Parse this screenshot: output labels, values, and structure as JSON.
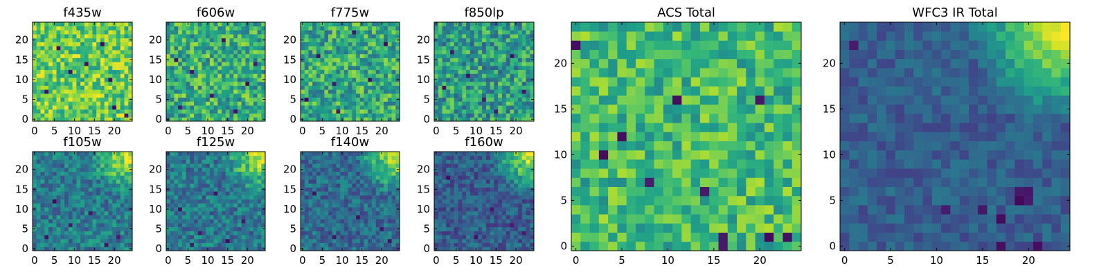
{
  "figure": {
    "description": "Grid of 25x25 heatmap image panels: eight per-filter cutouts plus ACS and WFC3 IR totals"
  },
  "colormap": {
    "name": "viridis",
    "stops": [
      "#440154",
      "#482878",
      "#3e4989",
      "#31688e",
      "#26828e",
      "#1f9e89",
      "#35b779",
      "#6ece58",
      "#b5de2b",
      "#fde725"
    ]
  },
  "chart_data": [
    {
      "type": "heatmap",
      "id": "f435w",
      "title": "f435w",
      "size": 25,
      "xlim": [
        -0.5,
        24.5
      ],
      "ylim": [
        -0.5,
        24.5
      ],
      "xticks": [
        0,
        5,
        10,
        15,
        20
      ],
      "yticks": [
        0,
        5,
        10,
        15,
        20
      ],
      "pattern": {
        "base": 0.76,
        "variation": 0.22,
        "dark_cells": [
          [
            9,
            12
          ],
          [
            17,
            19
          ],
          [
            3,
            7
          ],
          [
            20,
            3
          ],
          [
            23,
            1
          ],
          [
            13,
            14
          ],
          [
            6,
            18
          ],
          [
            19,
            10
          ]
        ]
      }
    },
    {
      "type": "heatmap",
      "id": "f606w",
      "title": "f606w",
      "size": 25,
      "xlim": [
        -0.5,
        24.5
      ],
      "ylim": [
        -0.5,
        24.5
      ],
      "xticks": [
        0,
        5,
        10,
        15,
        20
      ],
      "yticks": [
        0,
        5,
        10,
        15,
        20
      ],
      "pattern": {
        "base": 0.62,
        "variation": 0.25,
        "dark_cells": [
          [
            14,
            20
          ],
          [
            6,
            12
          ],
          [
            20,
            9
          ],
          [
            3,
            3
          ],
          [
            17,
            2
          ],
          [
            11,
            6
          ],
          [
            2,
            15
          ],
          [
            22,
            14
          ]
        ]
      }
    },
    {
      "type": "heatmap",
      "id": "f775w",
      "title": "f775w",
      "size": 25,
      "xlim": [
        -0.5,
        24.5
      ],
      "ylim": [
        -0.5,
        24.5
      ],
      "xticks": [
        0,
        5,
        10,
        15,
        20
      ],
      "yticks": [
        0,
        5,
        10,
        15,
        20
      ],
      "pattern": {
        "base": 0.6,
        "variation": 0.25,
        "dark_cells": [
          [
            4,
            16
          ],
          [
            17,
            10
          ],
          [
            1,
            5
          ],
          [
            21,
            19
          ],
          [
            9,
            2
          ],
          [
            13,
            22
          ],
          [
            8,
            9
          ]
        ]
      }
    },
    {
      "type": "heatmap",
      "id": "f850lp",
      "title": "f850lp",
      "size": 25,
      "xlim": [
        -0.5,
        24.5
      ],
      "ylim": [
        -0.5,
        24.5
      ],
      "xticks": [
        0,
        5,
        10,
        15,
        20
      ],
      "yticks": [
        0,
        5,
        10,
        15,
        20
      ],
      "pattern": {
        "base": 0.55,
        "variation": 0.25,
        "dark_cells": [
          [
            4,
            17
          ],
          [
            12,
            5
          ],
          [
            19,
            16
          ],
          [
            8,
            11
          ],
          [
            22,
            7
          ],
          [
            15,
            2
          ],
          [
            2,
            8
          ]
        ]
      }
    },
    {
      "type": "heatmap",
      "id": "f105w",
      "title": "f105w",
      "size": 25,
      "xlim": [
        -0.5,
        24.5
      ],
      "ylim": [
        -0.5,
        24.5
      ],
      "xticks": [
        0,
        5,
        10,
        15,
        20
      ],
      "yticks": [
        0,
        5,
        10,
        15,
        20
      ],
      "pattern": {
        "base": 0.42,
        "variation": 0.18,
        "dark_cells": [
          [
            3,
            3
          ],
          [
            18,
            1
          ],
          [
            9,
            6
          ],
          [
            21,
            3
          ],
          [
            5,
            12
          ],
          [
            14,
            9
          ]
        ],
        "corner_boost": 0.55
      }
    },
    {
      "type": "heatmap",
      "id": "f125w",
      "title": "f125w",
      "size": 25,
      "xlim": [
        -0.5,
        24.5
      ],
      "ylim": [
        -0.5,
        24.5
      ],
      "xticks": [
        0,
        5,
        10,
        15,
        20
      ],
      "yticks": [
        0,
        5,
        10,
        15,
        20
      ],
      "pattern": {
        "base": 0.4,
        "variation": 0.18,
        "dark_cells": [
          [
            8,
            4
          ],
          [
            15,
            2
          ],
          [
            3,
            10
          ],
          [
            19,
            7
          ],
          [
            12,
            14
          ],
          [
            6,
            1
          ]
        ],
        "corner_boost": 0.6
      }
    },
    {
      "type": "heatmap",
      "id": "f140w",
      "title": "f140w",
      "size": 25,
      "xlim": [
        -0.5,
        24.5
      ],
      "ylim": [
        -0.5,
        24.5
      ],
      "xticks": [
        0,
        5,
        10,
        15,
        20
      ],
      "yticks": [
        0,
        5,
        10,
        15,
        20
      ],
      "pattern": {
        "base": 0.35,
        "variation": 0.16,
        "dark_cells": [
          [
            20,
            5
          ],
          [
            8,
            3
          ],
          [
            14,
            8
          ],
          [
            3,
            14
          ],
          [
            22,
            2
          ]
        ],
        "corner_boost": 0.65
      }
    },
    {
      "type": "heatmap",
      "id": "f160w",
      "title": "f160w",
      "size": 25,
      "xlim": [
        -0.5,
        24.5
      ],
      "ylim": [
        -0.5,
        24.5
      ],
      "xticks": [
        0,
        5,
        10,
        15,
        20
      ],
      "yticks": [
        0,
        5,
        10,
        15,
        20
      ],
      "pattern": {
        "base": 0.3,
        "variation": 0.15,
        "dark_cells": [
          [
            19,
            6
          ],
          [
            10,
            3
          ],
          [
            3,
            18
          ],
          [
            22,
            4
          ],
          [
            14,
            10
          ]
        ],
        "corner_boost": 0.7
      }
    },
    {
      "type": "heatmap",
      "id": "acs-total",
      "title": "ACS Total",
      "size": 25,
      "xlim": [
        -0.5,
        24.5
      ],
      "ylim": [
        -0.5,
        24.5
      ],
      "xticks": [
        0,
        5,
        10,
        15,
        20
      ],
      "yticks": [
        0,
        5,
        10,
        15,
        20
      ],
      "pattern": {
        "base": 0.68,
        "variation": 0.2,
        "dark_cells": [
          [
            0,
            22
          ],
          [
            3,
            10
          ],
          [
            8,
            7
          ],
          [
            14,
            6
          ],
          [
            16,
            1
          ],
          [
            16,
            0
          ],
          [
            20,
            16
          ],
          [
            21,
            1
          ],
          [
            23,
            1
          ],
          [
            11,
            16
          ],
          [
            5,
            12
          ]
        ]
      }
    },
    {
      "type": "heatmap",
      "id": "wfc3-ir-total",
      "title": "WFC3 IR Total",
      "size": 25,
      "xlim": [
        -0.5,
        24.5
      ],
      "ylim": [
        -0.5,
        24.5
      ],
      "xticks": [
        0,
        5,
        10,
        15,
        20
      ],
      "yticks": [
        0,
        5,
        10,
        15,
        20
      ],
      "pattern": {
        "base": 0.3,
        "variation": 0.1,
        "dark_cells": [
          [
            1,
            22
          ],
          [
            19,
            6
          ],
          [
            20,
            6
          ],
          [
            19,
            5
          ],
          [
            20,
            5
          ],
          [
            11,
            4
          ],
          [
            15,
            4
          ],
          [
            17,
            3
          ],
          [
            21,
            0
          ],
          [
            17,
            0
          ]
        ],
        "corner_boost": 0.75
      }
    }
  ]
}
